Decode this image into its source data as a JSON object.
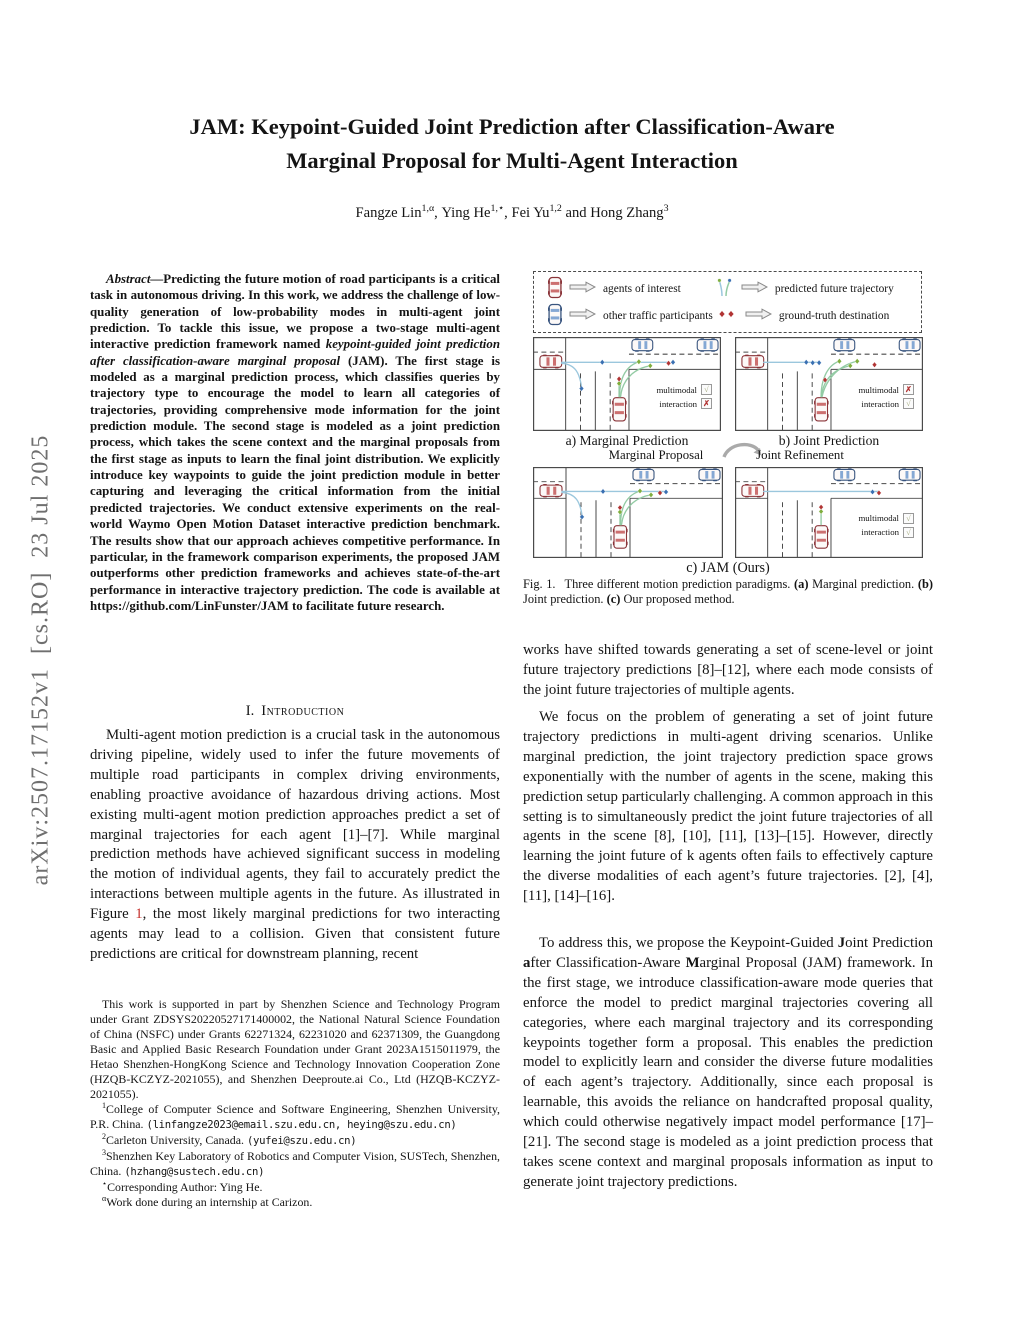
{
  "arxiv_banner": "arXiv:2507.17152v1  [cs.RO]  23 Jul 2025",
  "title": {
    "line1": "JAM: Keypoint-Guided Joint Prediction after Classification-Aware",
    "line2": "Marginal Proposal for Multi-Agent Interaction"
  },
  "authors": {
    "list": [
      {
        "name": "Fangze Lin",
        "sup": "1,α",
        "sep": ", "
      },
      {
        "name": "Ying He",
        "sup": "1,⋆",
        "sep": ", "
      },
      {
        "name": "Fei Yu",
        "sup": "1,2",
        "sep": " and "
      },
      {
        "name": "Hong Zhang",
        "sup": "3",
        "sep": ""
      }
    ]
  },
  "abstract": {
    "label": "Abstract—",
    "seg1": "Predicting the future motion of road participants is a critical task in autonomous driving. In this work, we address the challenge of low-quality generation of low-probability modes in multi-agent joint prediction. To tackle this issue, we propose a two-stage multi-agent interactive prediction framework named ",
    "seg2_italic": "keypoint-guided joint prediction after classification-aware marginal proposal",
    "seg3": " (JAM). The first stage is modeled as a marginal prediction process, which classifies queries by trajectory type to encourage the model to learn all categories of trajectories, providing comprehensive mode information for the joint prediction module. The second stage is modeled as a joint prediction process, which takes the scene context and the marginal proposals from the first stage as inputs to learn the final joint distribution. We explicitly introduce key waypoints to guide the joint prediction module in better capturing and leveraging the critical information from the initial predicted trajectories. We conduct extensive experiments on the real-world Waymo Open Motion Dataset interactive prediction benchmark. The results show that our approach achieves competitive performance. In particular, in the framework comparison experiments, the proposed JAM outperforms other prediction frameworks and achieves state-of-the-art performance in interactive trajectory prediction. The code is available at ",
    "url": "https://github.com/LinFunster/JAM",
    "seg4": " to facilitate future research."
  },
  "section1": {
    "number": "I.",
    "title": "Introduction"
  },
  "intro": {
    "p1a": "Multi-agent motion prediction is a crucial task in the autonomous driving pipeline, widely used to infer the future movements of multiple road participants in complex driving environments, enabling proactive avoidance of hazardous driving actions. Most existing multi-agent motion prediction approaches predict a set of marginal trajectories for each agent [1]–[7]. While marginal prediction methods have achieved significant success in modeling the motion of individual agents, they fail to accurately predict the interactions between multiple agents in the future. As illustrated in Figure ",
    "figref": "1",
    "p1b": ", the most likely marginal predictions for two interacting agents may lead to a collision. Given that consistent future predictions are critical for downstream planning, recent"
  },
  "right_column": {
    "p1": "works have shifted towards generating a set of scene-level or joint future trajectory predictions [8]–[12], where each mode consists of the joint future trajectories of multiple agents.",
    "p2": "We focus on the problem of generating a set of joint future trajectory predictions in multi-agent driving scenarios. Unlike marginal prediction, the joint trajectory prediction space grows exponentially with the number of agents in the scene, making this prediction setup particularly challenging. A common approach in this setting is to simultaneously predict the joint future trajectories of all agents in the scene [8], [10], [11], [13]–[15]. However, directly learning the joint future of k agents often fails to effectively capture the diverse modalities of each agent’s future trajectories. [2], [4], [11], [14]–[16].",
    "p3_segments": [
      {
        "t": "To address this, we propose the Keypoint-Guided ",
        "b": false
      },
      {
        "t": "J",
        "b": true
      },
      {
        "t": "oint Prediction ",
        "b": false
      },
      {
        "t": "a",
        "b": true
      },
      {
        "t": "fter Classification-Aware ",
        "b": false
      },
      {
        "t": "M",
        "b": true
      },
      {
        "t": "arginal Proposal (JAM) framework. In the first stage, we introduce classification-aware mode queries that enforce the model to predict marginal trajectories covering all categories, where each marginal trajectory and its corresponding keypoints together form a proposal. This enables the prediction model to explicitly learn and consider the diverse future modalities of each agent’s trajectory. Additionally, since each proposal is learnable, this avoids the reliance on handcrafted proposal quality, which could otherwise negatively impact model performance [17]–[21]. The second stage is modeled as a joint prediction process that takes scene context and marginal proposals information as input to generate joint trajectory predictions.",
        "b": false
      }
    ]
  },
  "footnotes": [
    {
      "sup": "",
      "text": "This work is supported in part by Shenzhen Science and Technology Program under Grant ZDSYS20220527171400002, the National Natural Science Foundation of China (NSFC) under Grants 62271324, 62231020 and 62371309, the Guangdong Basic and Applied Basic Research Foundation under Grant 2023A1515011979, the Hetao Shenzhen-HongKong Science and Technology Innovation Cooperation Zone (HZQB-KCZYZ-2021055), and Shenzhen Deeproute.ai Co., Ltd (HZQB-KCZYZ-2021055).",
      "mono": ""
    },
    {
      "sup": "1",
      "text": "College of Computer Science and Software Engineering, Shenzhen University, P.R. China. ",
      "mono": "(linfangze2023@email.szu.edu.cn, heying@szu.edu.cn)"
    },
    {
      "sup": "2",
      "text": "Carleton University, Canada. ",
      "mono": "(yufei@szu.edu.cn)"
    },
    {
      "sup": "3",
      "text": "Shenzhen Key Laboratory of Robotics and Computer Vision, SUSTech, Shenzhen, China. ",
      "mono": "(hzhang@sustech.edu.cn)"
    },
    {
      "sup": "⋆",
      "text": "Corresponding Author: Ying He.",
      "mono": ""
    },
    {
      "sup": "α",
      "text": "Work done during an internship at Carizon.",
      "mono": ""
    }
  ],
  "figure": {
    "legend": [
      {
        "icon": "car-red",
        "label": "agents of interest"
      },
      {
        "icon": "trajectory",
        "label": "predicted future trajectory"
      },
      {
        "icon": "car-blue",
        "label": "other traffic participants"
      },
      {
        "icon": "destination",
        "label": "ground-truth destination"
      }
    ],
    "panel_a_caption": "a) Marginal Prediction",
    "panel_b_caption": "b) Joint Prediction",
    "panel_c_caption": "c) JAM (Ours)",
    "sub_left_label": "Marginal Proposal",
    "sub_right_label": "Joint Refinement",
    "badge_multimodal": "multimodal",
    "badge_interaction": "interaction",
    "badges": {
      "a": {
        "multimodal": "check",
        "interaction": "cross"
      },
      "b": {
        "multimodal": "cross",
        "interaction": "check"
      },
      "cl": null,
      "cr": {
        "multimodal": "check",
        "interaction": "check"
      }
    },
    "caption_segments": [
      {
        "t": "Fig. 1.",
        "b": false,
        "cls": "cap-fig"
      },
      {
        "t": "Three different motion prediction paradigms. ",
        "b": false
      },
      {
        "t": "(a)",
        "b": true
      },
      {
        "t": " Marginal prediction. ",
        "b": false
      },
      {
        "t": "(b)",
        "b": true
      },
      {
        "t": " Joint prediction. ",
        "b": false
      },
      {
        "t": "(c)",
        "b": true
      },
      {
        "t": " Our proposed method.",
        "b": false
      }
    ],
    "colors": {
      "road": "#4a4a4a",
      "agent_car_dark": "#8a3439",
      "agent_car_light": "#cc7070",
      "other_car_dark": "#39557f",
      "other_car_light": "#85a8d4",
      "trajectory_blue": "#9bc7dd",
      "trajectory_green": "#93cba4",
      "keypoint_blue": "#3a70b2",
      "keypoint_green": "#7fae3e",
      "destination_red": "#b13434"
    }
  }
}
